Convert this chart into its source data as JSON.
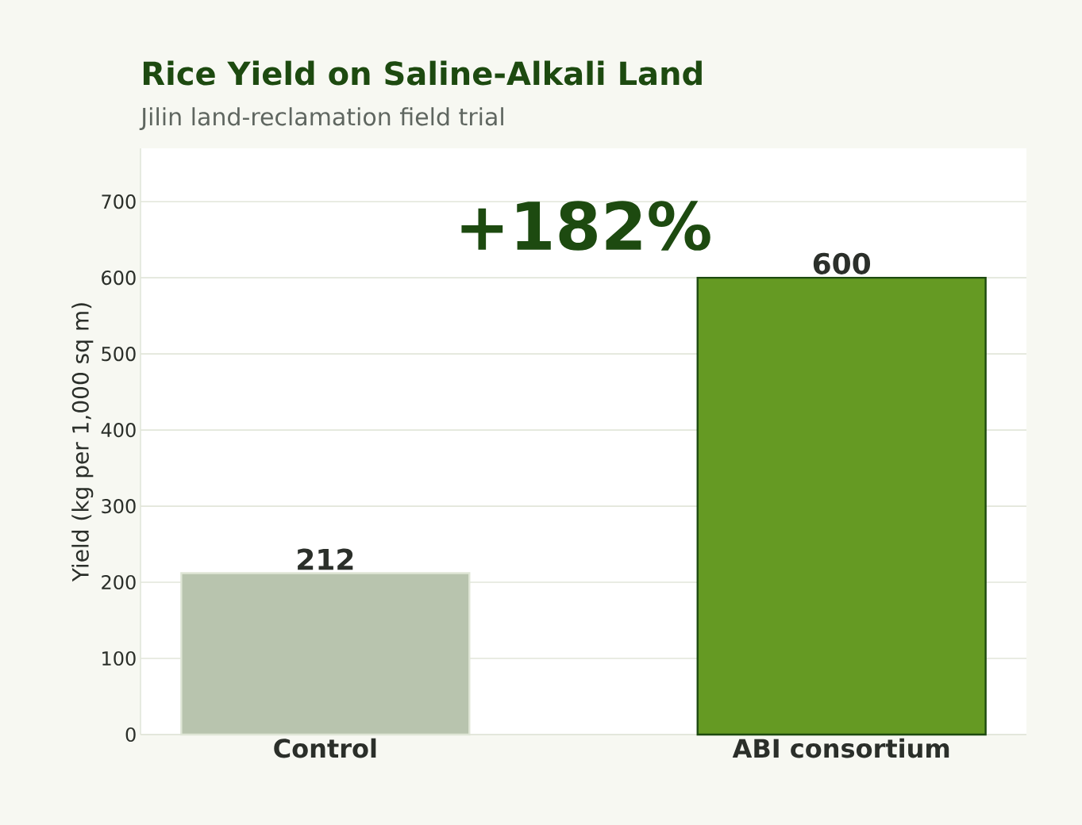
{
  "chart_data": {
    "type": "bar",
    "title": "Rice Yield on Saline-Alkali Land",
    "subtitle": "Jilin land-reclamation field trial",
    "ylabel": "Yield (kg per 1,000 sq m)",
    "categories": [
      "Control",
      "ABI consortium"
    ],
    "values": [
      212,
      600
    ],
    "colors": [
      "#b8c4ae",
      "#659a23"
    ],
    "ylim": [
      0,
      770
    ],
    "yticks": [
      0,
      100,
      200,
      300,
      400,
      500,
      600,
      700
    ],
    "grid": "y",
    "data_labels": true,
    "annotations": [
      "+182%"
    ]
  }
}
